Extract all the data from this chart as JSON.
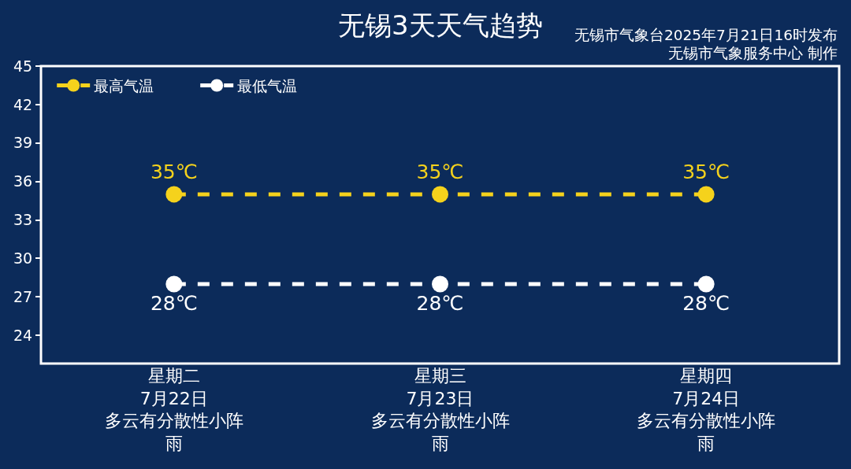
{
  "chart_data": {
    "type": "line",
    "title": "无锡3天天气趋势",
    "annotations": [
      "无锡市气象台2025年7月21日16时发布",
      "无锡市气象服务中心 制作"
    ],
    "categories": [
      "星期二\n7月22日多云有分散性小阵雨",
      "星期三\n7月23日多云有分散性小阵雨",
      "星期四\n7月24日多云有分散性小阵雨"
    ],
    "series": [
      {
        "name": "最高气温",
        "color": "#f5d21c",
        "values": [
          35,
          35,
          35
        ],
        "value_labels": [
          "35℃",
          "35℃",
          "35℃"
        ]
      },
      {
        "name": "最低气温",
        "color": "#ffffff",
        "values": [
          28,
          28,
          28
        ],
        "value_labels": [
          "28℃",
          "28℃",
          "28℃"
        ]
      }
    ],
    "ylim": [
      21.8,
      45
    ],
    "yticks": [
      24,
      27,
      30,
      33,
      36,
      39,
      42,
      45
    ],
    "legend": "top left",
    "marker": "circle",
    "line_style": "dashed"
  }
}
